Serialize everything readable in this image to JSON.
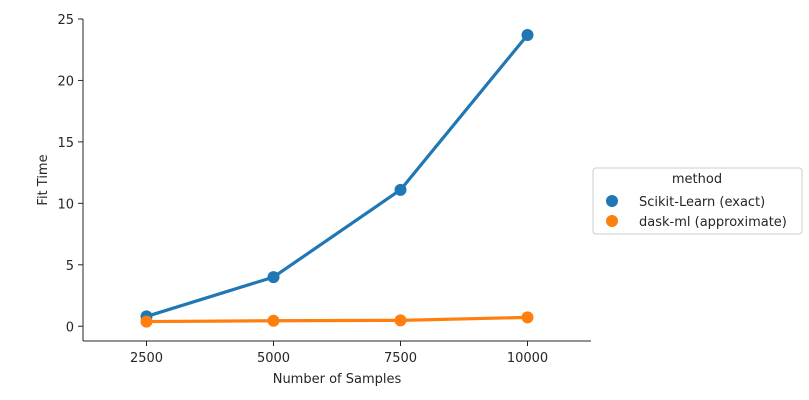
{
  "chart_data": {
    "type": "line",
    "title": "",
    "xlabel": "Number of Samples",
    "ylabel": "Fit Time",
    "categories": [
      "2500",
      "5000",
      "7500",
      "10000"
    ],
    "ylim": [
      -1.2,
      25
    ],
    "yticks": [
      0,
      5,
      10,
      15,
      20,
      25
    ],
    "grid": false,
    "legend_position": "right",
    "legend_title": "method",
    "series": [
      {
        "name": "Scikit-Learn (exact)",
        "color": "#1f77b4",
        "values": [
          0.8,
          4.0,
          11.1,
          23.7
        ]
      },
      {
        "name": "dask-ml (approximate)",
        "color": "#ff7f0e",
        "values": [
          0.38,
          0.45,
          0.48,
          0.72
        ]
      }
    ]
  }
}
